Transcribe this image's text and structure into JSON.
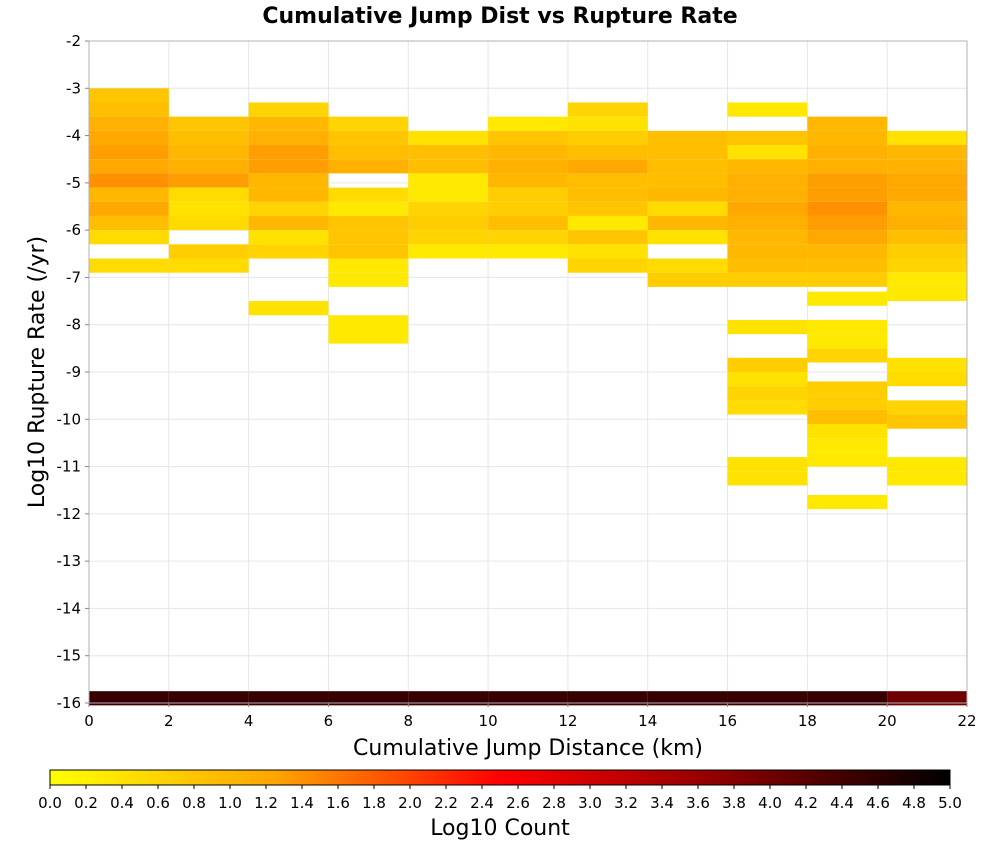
{
  "chart_data": {
    "type": "heatmap",
    "title": "Cumulative Jump Dist vs Rupture Rate",
    "xlabel": "Cumulative Jump Distance (km)",
    "ylabel": "Log10 Rupture Rate (/yr)",
    "xlim": [
      0,
      22
    ],
    "ylim": [
      -16,
      -2
    ],
    "x_ticks": [
      "0",
      "2",
      "4",
      "6",
      "8",
      "10",
      "12",
      "14",
      "16",
      "18",
      "20",
      "22"
    ],
    "y_ticks": [
      "-2",
      "-3",
      "-4",
      "-5",
      "-6",
      "-7",
      "-8",
      "-9",
      "-10",
      "-11",
      "-12",
      "-13",
      "-14",
      "-15",
      "-16"
    ],
    "bin_width_x": 2,
    "bin_height_y": 0.3,
    "grid": true,
    "colorbar": {
      "label": "Log10 Count",
      "min": 0.0,
      "max": 5.0,
      "ticks": [
        "0.0",
        "0.2",
        "0.4",
        "0.6",
        "0.8",
        "1.0",
        "1.2",
        "1.4",
        "1.6",
        "1.8",
        "2.0",
        "2.2",
        "2.4",
        "2.6",
        "2.8",
        "3.0",
        "3.2",
        "3.4",
        "3.6",
        "3.8",
        "4.0",
        "4.2",
        "4.4",
        "4.6",
        "4.8",
        "5.0"
      ],
      "placement": "bottom",
      "colors": [
        "#ffff00",
        "#ffa500",
        "#ff0000",
        "#8b0000",
        "#000000"
      ]
    },
    "columns": [
      {
        "x": 1,
        "cells": [
          [
            -3.15,
            0.8
          ],
          [
            -3.45,
            0.9
          ],
          [
            -3.75,
            1.1
          ],
          [
            -4.05,
            1.2
          ],
          [
            -4.35,
            1.3
          ],
          [
            -4.65,
            1.2
          ],
          [
            -4.95,
            1.4
          ],
          [
            -5.25,
            1.0
          ],
          [
            -5.55,
            1.2
          ],
          [
            -5.85,
            0.9
          ],
          [
            -6.15,
            0.5
          ],
          [
            -6.75,
            0.5
          ],
          [
            -15.9,
            4.5
          ]
        ]
      },
      {
        "x": 3,
        "cells": [
          [
            -3.75,
            0.8
          ],
          [
            -4.05,
            0.9
          ],
          [
            -4.35,
            1.0
          ],
          [
            -4.65,
            1.1
          ],
          [
            -4.95,
            1.3
          ],
          [
            -5.25,
            0.5
          ],
          [
            -5.55,
            0.4
          ],
          [
            -5.85,
            0.5
          ],
          [
            -6.45,
            0.7
          ],
          [
            -6.75,
            0.5
          ],
          [
            -15.9,
            4.5
          ]
        ]
      },
      {
        "x": 5,
        "cells": [
          [
            -3.45,
            0.6
          ],
          [
            -3.75,
            1.0
          ],
          [
            -4.05,
            1.1
          ],
          [
            -4.35,
            1.3
          ],
          [
            -4.65,
            1.3
          ],
          [
            -4.95,
            1.0
          ],
          [
            -5.25,
            1.0
          ],
          [
            -5.55,
            0.6
          ],
          [
            -5.85,
            1.0
          ],
          [
            -6.15,
            0.4
          ],
          [
            -6.45,
            0.6
          ],
          [
            -7.65,
            0.4
          ],
          [
            -15.9,
            4.5
          ]
        ]
      },
      {
        "x": 7,
        "cells": [
          [
            -3.75,
            0.6
          ],
          [
            -4.05,
            0.8
          ],
          [
            -4.35,
            0.9
          ],
          [
            -4.65,
            1.1
          ],
          [
            -5.25,
            0.5
          ],
          [
            -5.55,
            0.3
          ],
          [
            -5.85,
            0.8
          ],
          [
            -6.15,
            0.8
          ],
          [
            -6.45,
            0.8
          ],
          [
            -6.75,
            0.3
          ],
          [
            -7.05,
            0.3
          ],
          [
            -7.95,
            0.3
          ],
          [
            -8.25,
            0.3
          ],
          [
            -15.9,
            4.5
          ]
        ]
      },
      {
        "x": 9,
        "cells": [
          [
            -4.05,
            0.4
          ],
          [
            -4.35,
            0.9
          ],
          [
            -4.65,
            0.9
          ],
          [
            -4.95,
            0.3
          ],
          [
            -5.25,
            0.3
          ],
          [
            -5.55,
            0.6
          ],
          [
            -5.85,
            0.7
          ],
          [
            -6.15,
            0.6
          ],
          [
            -6.45,
            0.3
          ],
          [
            -15.9,
            4.5
          ]
        ]
      },
      {
        "x": 11,
        "cells": [
          [
            -3.75,
            0.3
          ],
          [
            -4.05,
            0.8
          ],
          [
            -4.35,
            1.0
          ],
          [
            -4.65,
            1.1
          ],
          [
            -4.95,
            1.0
          ],
          [
            -5.25,
            0.7
          ],
          [
            -5.55,
            0.7
          ],
          [
            -5.85,
            0.9
          ],
          [
            -6.15,
            0.6
          ],
          [
            -6.45,
            0.3
          ],
          [
            -15.9,
            4.5
          ]
        ]
      },
      {
        "x": 13,
        "cells": [
          [
            -3.45,
            0.6
          ],
          [
            -3.75,
            0.4
          ],
          [
            -4.05,
            0.7
          ],
          [
            -4.35,
            0.9
          ],
          [
            -4.65,
            1.2
          ],
          [
            -4.95,
            0.9
          ],
          [
            -5.25,
            0.9
          ],
          [
            -5.55,
            0.8
          ],
          [
            -5.85,
            0.3
          ],
          [
            -6.15,
            0.8
          ],
          [
            -6.45,
            0.4
          ],
          [
            -6.75,
            0.6
          ],
          [
            -15.9,
            4.5
          ]
        ]
      },
      {
        "x": 15,
        "cells": [
          [
            -4.05,
            0.9
          ],
          [
            -4.35,
            0.9
          ],
          [
            -4.65,
            0.9
          ],
          [
            -4.95,
            0.9
          ],
          [
            -5.25,
            1.0
          ],
          [
            -5.55,
            0.5
          ],
          [
            -5.85,
            1.0
          ],
          [
            -6.15,
            0.4
          ],
          [
            -6.75,
            0.5
          ],
          [
            -7.05,
            0.7
          ],
          [
            -15.9,
            4.5
          ]
        ]
      },
      {
        "x": 17,
        "cells": [
          [
            -3.45,
            0.3
          ],
          [
            -4.05,
            0.8
          ],
          [
            -4.35,
            0.4
          ],
          [
            -4.65,
            1.0
          ],
          [
            -4.95,
            1.1
          ],
          [
            -5.25,
            1.1
          ],
          [
            -5.55,
            1.2
          ],
          [
            -5.85,
            1.1
          ],
          [
            -6.15,
            1.0
          ],
          [
            -6.45,
            1.0
          ],
          [
            -6.75,
            0.9
          ],
          [
            -7.05,
            0.7
          ],
          [
            -8.05,
            0.4
          ],
          [
            -8.85,
            0.7
          ],
          [
            -9.15,
            0.4
          ],
          [
            -9.45,
            0.6
          ],
          [
            -9.75,
            0.5
          ],
          [
            -10.95,
            0.4
          ],
          [
            -11.25,
            0.4
          ],
          [
            -15.9,
            4.5
          ]
        ]
      },
      {
        "x": 19,
        "cells": [
          [
            -3.75,
            1.0
          ],
          [
            -4.05,
            1.0
          ],
          [
            -4.35,
            1.1
          ],
          [
            -4.65,
            1.1
          ],
          [
            -4.95,
            1.3
          ],
          [
            -5.25,
            1.3
          ],
          [
            -5.55,
            1.4
          ],
          [
            -5.85,
            1.3
          ],
          [
            -6.15,
            1.2
          ],
          [
            -6.45,
            1.0
          ],
          [
            -6.75,
            0.9
          ],
          [
            -7.05,
            0.7
          ],
          [
            -7.45,
            0.3
          ],
          [
            -8.05,
            0.3
          ],
          [
            -8.35,
            0.3
          ],
          [
            -8.65,
            0.6
          ],
          [
            -9.35,
            0.7
          ],
          [
            -9.65,
            0.7
          ],
          [
            -9.95,
            0.9
          ],
          [
            -10.25,
            0.4
          ],
          [
            -10.55,
            0.3
          ],
          [
            -10.85,
            0.3
          ],
          [
            -11.75,
            0.3
          ],
          [
            -15.9,
            4.5
          ]
        ]
      },
      {
        "x": 21,
        "cells": [
          [
            -4.05,
            0.4
          ],
          [
            -4.35,
            1.0
          ],
          [
            -4.65,
            1.1
          ],
          [
            -4.95,
            1.2
          ],
          [
            -5.25,
            1.2
          ],
          [
            -5.55,
            1.0
          ],
          [
            -5.85,
            1.1
          ],
          [
            -6.15,
            0.9
          ],
          [
            -6.45,
            0.7
          ],
          [
            -6.75,
            0.6
          ],
          [
            -7.05,
            0.3
          ],
          [
            -7.35,
            0.3
          ],
          [
            -8.85,
            0.4
          ],
          [
            -9.15,
            0.5
          ],
          [
            -9.75,
            0.6
          ],
          [
            -10.05,
            0.8
          ],
          [
            -10.95,
            0.3
          ],
          [
            -11.25,
            0.3
          ],
          [
            -15.9,
            4.0
          ]
        ]
      }
    ]
  }
}
